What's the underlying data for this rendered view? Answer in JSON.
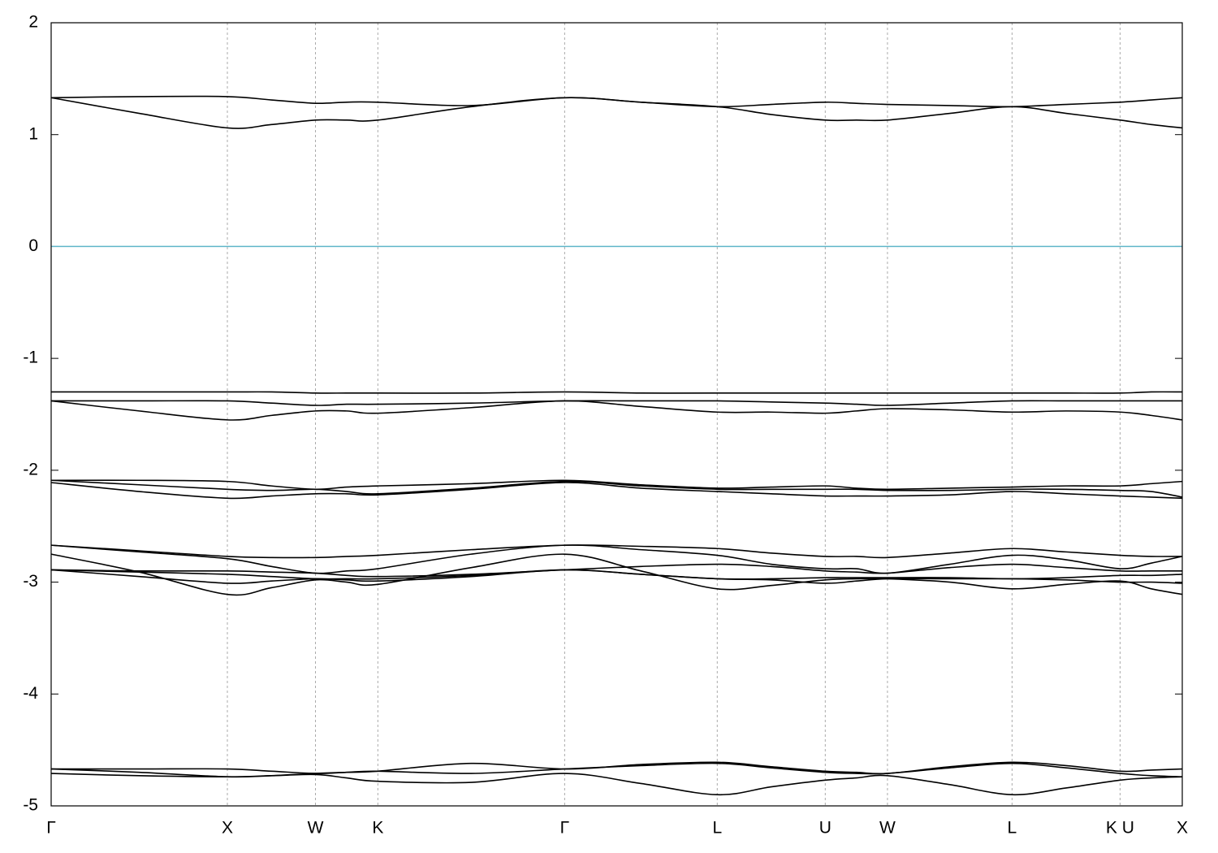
{
  "chart_data": {
    "type": "line",
    "x": [
      0,
      0.5,
      1,
      1.25,
      1.5,
      1.677,
      1.854,
      2.384,
      2.914,
      3.347,
      3.78,
      4.086,
      4.393,
      4.57,
      4.746,
      5.1,
      5.453,
      5.76,
      6.066,
      6.243,
      6.419
    ],
    "xlim": [
      0,
      6.419
    ],
    "xticks": [
      {
        "value": 0,
        "label": "Γ"
      },
      {
        "value": 1,
        "label": "X"
      },
      {
        "value": 1.5,
        "label": "W"
      },
      {
        "value": 1.854,
        "label": "K"
      },
      {
        "value": 2.914,
        "label": "Γ"
      },
      {
        "value": 3.78,
        "label": "L"
      },
      {
        "value": 4.393,
        "label": "U"
      },
      {
        "value": 4.746,
        "label": "W"
      },
      {
        "value": 5.453,
        "label": "L"
      },
      {
        "value": 6.066,
        "label": "K U"
      },
      {
        "value": 6.419,
        "label": "X"
      }
    ],
    "ylim": [
      -5,
      2
    ],
    "yticks": [
      -5,
      -4,
      -3,
      -2,
      -1,
      0,
      1,
      2
    ],
    "grid": "x",
    "hline": {
      "value": 0,
      "color": "#5fb6c9"
    },
    "series": [
      {
        "color": "#000000",
        "values": [
          1.33,
          1.34,
          1.34,
          1.31,
          1.28,
          1.29,
          1.29,
          1.26,
          1.33,
          1.29,
          1.25,
          1.27,
          1.29,
          1.28,
          1.27,
          1.26,
          1.25,
          1.27,
          1.29,
          1.31,
          1.33
        ]
      },
      {
        "color": "#000000",
        "values": [
          1.33,
          1.19,
          1.06,
          1.09,
          1.13,
          1.13,
          1.13,
          1.25,
          1.33,
          1.29,
          1.25,
          1.18,
          1.13,
          1.13,
          1.13,
          1.19,
          1.25,
          1.19,
          1.13,
          1.09,
          1.06
        ]
      },
      {
        "color": "#000000",
        "values": [
          -1.3,
          -1.3,
          -1.3,
          -1.3,
          -1.31,
          -1.31,
          -1.31,
          -1.31,
          -1.3,
          -1.31,
          -1.31,
          -1.31,
          -1.31,
          -1.31,
          -1.31,
          -1.31,
          -1.31,
          -1.31,
          -1.31,
          -1.3,
          -1.3
        ]
      },
      {
        "color": "#000000",
        "values": [
          -1.38,
          -1.38,
          -1.38,
          -1.4,
          -1.42,
          -1.41,
          -1.41,
          -1.4,
          -1.38,
          -1.38,
          -1.38,
          -1.39,
          -1.4,
          -1.41,
          -1.42,
          -1.4,
          -1.38,
          -1.38,
          -1.38,
          -1.38,
          -1.38
        ]
      },
      {
        "color": "#000000",
        "values": [
          -1.38,
          -1.47,
          -1.55,
          -1.51,
          -1.47,
          -1.47,
          -1.49,
          -1.44,
          -1.38,
          -1.43,
          -1.48,
          -1.48,
          -1.49,
          -1.47,
          -1.45,
          -1.46,
          -1.48,
          -1.47,
          -1.48,
          -1.51,
          -1.55
        ]
      },
      {
        "color": "#000000",
        "values": [
          -2.09,
          -2.09,
          -2.1,
          -2.14,
          -2.17,
          -2.15,
          -2.14,
          -2.12,
          -2.09,
          -2.13,
          -2.16,
          -2.15,
          -2.14,
          -2.16,
          -2.17,
          -2.16,
          -2.15,
          -2.14,
          -2.14,
          -2.12,
          -2.1
        ]
      },
      {
        "color": "#000000",
        "values": [
          -2.09,
          -2.13,
          -2.17,
          -2.18,
          -2.17,
          -2.19,
          -2.21,
          -2.16,
          -2.1,
          -2.14,
          -2.17,
          -2.17,
          -2.17,
          -2.17,
          -2.18,
          -2.18,
          -2.17,
          -2.17,
          -2.18,
          -2.19,
          -2.24
        ]
      },
      {
        "color": "#000000",
        "values": [
          -2.11,
          -2.19,
          -2.25,
          -2.23,
          -2.21,
          -2.21,
          -2.22,
          -2.17,
          -2.11,
          -2.16,
          -2.19,
          -2.21,
          -2.23,
          -2.23,
          -2.23,
          -2.22,
          -2.19,
          -2.21,
          -2.23,
          -2.24,
          -2.25
        ]
      },
      {
        "color": "#000000",
        "values": [
          -2.67,
          -2.72,
          -2.77,
          -2.78,
          -2.78,
          -2.77,
          -2.76,
          -2.71,
          -2.67,
          -2.68,
          -2.7,
          -2.74,
          -2.77,
          -2.77,
          -2.78,
          -2.74,
          -2.7,
          -2.73,
          -2.76,
          -2.77,
          -2.77
        ]
      },
      {
        "color": "#000000",
        "values": [
          -2.67,
          -2.73,
          -2.79,
          -2.86,
          -2.92,
          -2.9,
          -2.88,
          -2.75,
          -2.67,
          -2.71,
          -2.76,
          -2.84,
          -2.88,
          -2.88,
          -2.92,
          -2.84,
          -2.76,
          -2.8,
          -2.88,
          -2.83,
          -2.77
        ]
      },
      {
        "color": "#000000",
        "values": [
          -2.75,
          -2.91,
          -3.11,
          -3.05,
          -2.98,
          -3.0,
          -3.02,
          -2.87,
          -2.75,
          -2.9,
          -3.06,
          -3.03,
          -2.98,
          -2.97,
          -2.97,
          -3.0,
          -3.06,
          -3.02,
          -2.99,
          -3.06,
          -3.11
        ]
      },
      {
        "color": "#000000",
        "values": [
          -2.89,
          -2.9,
          -2.9,
          -2.91,
          -2.92,
          -2.94,
          -2.95,
          -2.93,
          -2.89,
          -2.86,
          -2.84,
          -2.86,
          -2.9,
          -2.91,
          -2.92,
          -2.87,
          -2.84,
          -2.87,
          -2.9,
          -2.9,
          -2.9
        ]
      },
      {
        "color": "#000000",
        "values": [
          -2.89,
          -2.95,
          -3.01,
          -2.99,
          -2.97,
          -2.98,
          -2.99,
          -2.95,
          -2.89,
          -2.93,
          -2.97,
          -2.98,
          -3.01,
          -2.99,
          -2.97,
          -2.97,
          -2.97,
          -2.98,
          -3.0,
          -3.0,
          -3.01
        ]
      },
      {
        "color": "#000000",
        "values": [
          -2.89,
          -2.91,
          -2.93,
          -2.95,
          -2.97,
          -2.97,
          -2.97,
          -2.94,
          -2.89,
          -2.93,
          -2.97,
          -2.97,
          -2.96,
          -2.96,
          -2.96,
          -2.96,
          -2.97,
          -2.96,
          -2.94,
          -2.94,
          -2.93
        ]
      },
      {
        "color": "#000000",
        "values": [
          -4.67,
          -4.67,
          -4.67,
          -4.69,
          -4.71,
          -4.7,
          -4.69,
          -4.62,
          -4.67,
          -4.63,
          -4.61,
          -4.65,
          -4.69,
          -4.7,
          -4.71,
          -4.65,
          -4.61,
          -4.64,
          -4.69,
          -4.68,
          -4.67
        ]
      },
      {
        "color": "#000000",
        "values": [
          -4.67,
          -4.7,
          -4.74,
          -4.73,
          -4.71,
          -4.7,
          -4.69,
          -4.71,
          -4.67,
          -4.64,
          -4.62,
          -4.66,
          -4.7,
          -4.71,
          -4.71,
          -4.66,
          -4.62,
          -4.66,
          -4.71,
          -4.73,
          -4.74
        ]
      },
      {
        "color": "#000000",
        "values": [
          -4.71,
          -4.73,
          -4.74,
          -4.73,
          -4.72,
          -4.75,
          -4.78,
          -4.79,
          -4.71,
          -4.8,
          -4.9,
          -4.83,
          -4.77,
          -4.75,
          -4.73,
          -4.81,
          -4.9,
          -4.84,
          -4.77,
          -4.75,
          -4.74
        ]
      }
    ]
  }
}
